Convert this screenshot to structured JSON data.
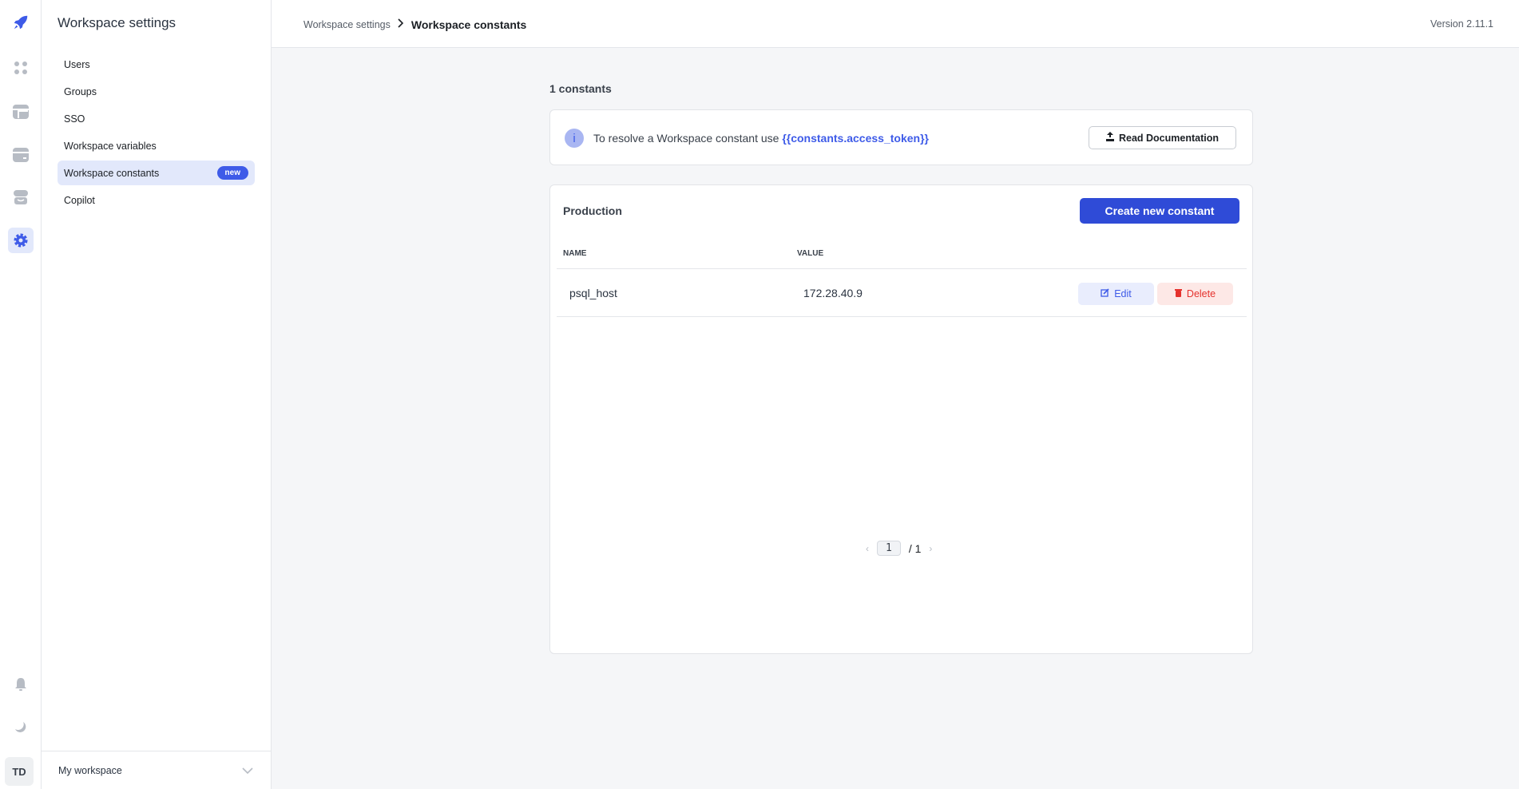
{
  "rail": {
    "icons": [
      "rocket-icon",
      "apps-grid-icon",
      "table-icon",
      "database-icon",
      "marketplace-icon",
      "settings-gear-icon",
      "bell-icon",
      "moon-icon"
    ],
    "avatar": "TD",
    "accent": "#3e5be8"
  },
  "settings": {
    "title": "Workspace settings",
    "items": [
      {
        "label": "Users"
      },
      {
        "label": "Groups"
      },
      {
        "label": "SSO"
      },
      {
        "label": "Workspace variables"
      },
      {
        "label": "Workspace constants",
        "badge": "new",
        "active": true
      },
      {
        "label": "Copilot"
      }
    ],
    "workspace": "My workspace"
  },
  "header": {
    "breadcrumb_parent": "Workspace settings",
    "breadcrumb_current": "Workspace constants",
    "version": "Version 2.11.1"
  },
  "main": {
    "count": "1 constants",
    "info": {
      "text": "To resolve a Workspace constant use ",
      "code": "{{constants.access_token}}",
      "button": "Read Documentation"
    },
    "env": "Production",
    "create_button": "Create new constant",
    "columns": [
      "NAME",
      "VALUE"
    ],
    "rows": [
      {
        "name": "psql_host",
        "value": "172.28.40.9",
        "edit": "Edit",
        "delete": "Delete"
      }
    ],
    "pagination": {
      "current": "1",
      "total": "/ 1"
    }
  }
}
